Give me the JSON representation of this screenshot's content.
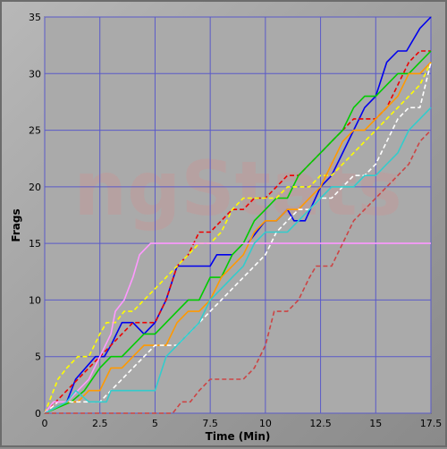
{
  "chart_data": {
    "type": "line",
    "title": "",
    "xlabel": "Time (Min)",
    "ylabel": "Frags",
    "xlim": [
      0,
      17.5
    ],
    "ylim": [
      0,
      35
    ],
    "xticks": [
      "0",
      "2.5",
      "5",
      "7.5",
      "10",
      "12.5",
      "15",
      "17.5"
    ],
    "yticks": [
      "0",
      "5",
      "10",
      "15",
      "20",
      "25",
      "30",
      "35"
    ],
    "grid": true,
    "legend": "none",
    "watermark": "ngStats",
    "series": [
      {
        "color": "#0000ee",
        "dash": "solid",
        "points": [
          [
            0,
            0
          ],
          [
            1,
            1
          ],
          [
            1.4,
            3
          ],
          [
            2.3,
            5
          ],
          [
            2.7,
            5
          ],
          [
            3,
            6
          ],
          [
            3.5,
            8
          ],
          [
            4,
            8
          ],
          [
            4.5,
            7
          ],
          [
            5,
            8
          ],
          [
            5.5,
            10
          ],
          [
            6,
            13
          ],
          [
            7.5,
            13
          ],
          [
            7.8,
            14
          ],
          [
            8.5,
            14
          ]
        ]
      },
      {
        "color": "#0000ee",
        "dash": "solid",
        "points": [
          [
            9.2,
            15
          ],
          [
            10,
            17
          ],
          [
            10.5,
            17
          ],
          [
            11,
            18
          ],
          [
            11.3,
            17
          ],
          [
            11.8,
            17
          ],
          [
            12.5,
            20
          ],
          [
            13,
            21
          ],
          [
            13.5,
            23
          ],
          [
            14,
            25
          ],
          [
            14.5,
            27
          ],
          [
            15,
            28
          ],
          [
            15.5,
            31
          ],
          [
            16,
            32
          ],
          [
            16.4,
            32
          ],
          [
            17,
            34
          ],
          [
            17.5,
            35
          ]
        ]
      },
      {
        "color": "#ee0000",
        "dash": "dashed",
        "points": [
          [
            0,
            0
          ],
          [
            1,
            2
          ],
          [
            1.5,
            3
          ],
          [
            2,
            4
          ],
          [
            2.5,
            5
          ],
          [
            3,
            6
          ],
          [
            3.5,
            7
          ],
          [
            4,
            8
          ],
          [
            4.5,
            8
          ],
          [
            5,
            8
          ],
          [
            5.5,
            10
          ],
          [
            6,
            13
          ],
          [
            6.5,
            14
          ],
          [
            7,
            16
          ],
          [
            7.5,
            16
          ],
          [
            8,
            17
          ],
          [
            8.5,
            18
          ],
          [
            9,
            18
          ],
          [
            9.5,
            19
          ],
          [
            10,
            19
          ],
          [
            10.5,
            20
          ],
          [
            11,
            21
          ],
          [
            11.5,
            21
          ],
          [
            12,
            22
          ],
          [
            12.5,
            23
          ],
          [
            13,
            24
          ],
          [
            13.5,
            25
          ],
          [
            14,
            26
          ],
          [
            15,
            26
          ],
          [
            15.5,
            27
          ],
          [
            16,
            29
          ],
          [
            16.5,
            31
          ],
          [
            17,
            32
          ],
          [
            17.5,
            32
          ]
        ]
      },
      {
        "color": "#00cc00",
        "dash": "solid",
        "points": [
          [
            0,
            0
          ],
          [
            1.2,
            1
          ],
          [
            1.8,
            2
          ],
          [
            2.5,
            4
          ],
          [
            3,
            5
          ],
          [
            3.5,
            5
          ],
          [
            4,
            6
          ],
          [
            4.5,
            7
          ],
          [
            5,
            7
          ],
          [
            5.5,
            8
          ],
          [
            6,
            9
          ],
          [
            6.5,
            10
          ],
          [
            7,
            10
          ],
          [
            7.5,
            12
          ],
          [
            8,
            12
          ],
          [
            8.5,
            14
          ],
          [
            9,
            15
          ],
          [
            9.5,
            17
          ],
          [
            10,
            18
          ],
          [
            10.5,
            19
          ],
          [
            11,
            19
          ],
          [
            11.5,
            21
          ],
          [
            12,
            22
          ],
          [
            12.5,
            23
          ],
          [
            13,
            24
          ],
          [
            13.5,
            25
          ],
          [
            14,
            27
          ],
          [
            14.5,
            28
          ],
          [
            15,
            28
          ],
          [
            15.5,
            29
          ],
          [
            16,
            30
          ],
          [
            16.5,
            30
          ],
          [
            17,
            31
          ],
          [
            17.5,
            32
          ]
        ]
      },
      {
        "color": "#ffff00",
        "dash": "dashed",
        "points": [
          [
            0,
            0
          ],
          [
            0.6,
            3
          ],
          [
            1,
            4
          ],
          [
            1.5,
            5
          ],
          [
            2,
            5
          ],
          [
            2.5,
            7
          ],
          [
            2.8,
            8
          ],
          [
            3.2,
            8
          ],
          [
            3.6,
            9
          ],
          [
            4,
            9
          ],
          [
            4.5,
            10
          ],
          [
            5,
            11
          ],
          [
            5.5,
            12
          ],
          [
            6,
            13
          ],
          [
            6.5,
            14
          ],
          [
            7,
            15
          ],
          [
            7.5,
            15
          ],
          [
            8,
            16
          ],
          [
            8.5,
            18
          ],
          [
            9,
            19
          ],
          [
            10,
            19
          ],
          [
            10.5,
            19
          ],
          [
            11,
            20
          ],
          [
            11.5,
            20
          ],
          [
            12,
            20
          ],
          [
            12.5,
            21
          ],
          [
            13,
            21
          ],
          [
            13.5,
            22
          ],
          [
            14,
            23
          ],
          [
            14.5,
            24
          ],
          [
            15,
            25
          ],
          [
            15.5,
            26
          ],
          [
            16,
            27
          ],
          [
            16.5,
            28
          ],
          [
            17,
            29
          ],
          [
            17.5,
            31
          ]
        ]
      },
      {
        "color": "#ff9900",
        "dash": "solid",
        "points": [
          [
            0,
            0
          ],
          [
            1,
            1
          ],
          [
            1.5,
            1
          ],
          [
            2,
            2
          ],
          [
            2.5,
            2
          ],
          [
            3,
            4
          ],
          [
            3.5,
            4
          ],
          [
            4,
            5
          ],
          [
            4.5,
            6
          ],
          [
            5,
            6
          ],
          [
            5.5,
            6
          ],
          [
            6,
            8
          ],
          [
            6.5,
            9
          ],
          [
            7,
            9
          ],
          [
            7.5,
            10
          ],
          [
            8,
            12
          ],
          [
            8.5,
            13
          ],
          [
            9,
            14
          ],
          [
            9.5,
            16
          ],
          [
            10,
            17
          ],
          [
            10.5,
            17
          ],
          [
            11,
            18
          ],
          [
            11.5,
            18
          ],
          [
            12,
            19
          ],
          [
            12.5,
            20
          ],
          [
            13,
            22
          ],
          [
            13.5,
            24
          ],
          [
            14,
            25
          ],
          [
            14.5,
            25
          ],
          [
            15,
            26
          ],
          [
            15.5,
            27
          ],
          [
            16,
            28
          ],
          [
            16.5,
            30
          ],
          [
            17,
            30
          ],
          [
            17.5,
            31
          ]
        ]
      },
      {
        "color": "#ffffff",
        "dash": "dashed",
        "points": [
          [
            0,
            0
          ],
          [
            0.6,
            1
          ],
          [
            1,
            1
          ],
          [
            1.5,
            1
          ],
          [
            2,
            1
          ],
          [
            2.5,
            1
          ],
          [
            3,
            2
          ],
          [
            3.5,
            3
          ],
          [
            4,
            4
          ],
          [
            4.5,
            5
          ],
          [
            5,
            6
          ],
          [
            5.5,
            6
          ],
          [
            6,
            6
          ],
          [
            6.5,
            7
          ],
          [
            7,
            8
          ],
          [
            7.5,
            9
          ],
          [
            8,
            10
          ],
          [
            8.5,
            11
          ],
          [
            9,
            12
          ],
          [
            9.5,
            13
          ],
          [
            10,
            14
          ],
          [
            10.5,
            16
          ],
          [
            11,
            17
          ],
          [
            11.5,
            18
          ],
          [
            12,
            18
          ],
          [
            12.5,
            19
          ],
          [
            13,
            19
          ],
          [
            13.5,
            20
          ],
          [
            14,
            21
          ],
          [
            14.5,
            21
          ],
          [
            15,
            22
          ],
          [
            15.5,
            24
          ],
          [
            16,
            26
          ],
          [
            16.5,
            27
          ],
          [
            17,
            27
          ],
          [
            17.5,
            31
          ]
        ]
      },
      {
        "color": "#ff99ff",
        "dash": "solid",
        "points": [
          [
            0,
            0
          ],
          [
            0.4,
            1
          ],
          [
            1,
            1
          ],
          [
            1.5,
            2
          ],
          [
            2,
            3
          ],
          [
            2.5,
            5
          ],
          [
            3,
            7
          ],
          [
            3.2,
            9
          ],
          [
            3.6,
            10
          ],
          [
            4,
            12
          ],
          [
            4.3,
            14
          ],
          [
            4.8,
            15
          ],
          [
            17.5,
            15
          ]
        ]
      },
      {
        "color": "#33cccc",
        "dash": "solid",
        "points": [
          [
            0,
            0
          ],
          [
            1,
            1
          ],
          [
            1.4,
            2
          ],
          [
            2,
            1
          ],
          [
            2.5,
            1
          ],
          [
            2.8,
            1
          ],
          [
            3,
            2
          ],
          [
            4,
            2
          ],
          [
            4.5,
            2
          ],
          [
            5,
            2
          ],
          [
            5.5,
            5
          ],
          [
            6,
            6
          ],
          [
            6.5,
            7
          ],
          [
            7,
            8
          ],
          [
            7.5,
            10
          ],
          [
            8,
            11
          ],
          [
            8.5,
            12
          ],
          [
            9,
            13
          ],
          [
            9.5,
            15
          ],
          [
            10,
            16
          ],
          [
            10.5,
            16
          ],
          [
            11,
            16
          ],
          [
            11.5,
            17
          ],
          [
            12,
            18
          ],
          [
            12.5,
            19
          ],
          [
            13,
            20
          ],
          [
            13.5,
            20
          ],
          [
            14,
            20
          ],
          [
            14.5,
            21
          ],
          [
            15,
            21
          ],
          [
            15.5,
            22
          ],
          [
            16,
            23
          ],
          [
            16.5,
            25
          ],
          [
            17,
            26
          ],
          [
            17.5,
            27
          ]
        ]
      },
      {
        "color": "#cc4444",
        "dash": "dashed",
        "points": [
          [
            0,
            0
          ],
          [
            5.8,
            0
          ],
          [
            6.2,
            1
          ],
          [
            6.6,
            1
          ],
          [
            7,
            2
          ],
          [
            7.5,
            3
          ],
          [
            8,
            3
          ],
          [
            8.5,
            3
          ],
          [
            9,
            3
          ],
          [
            9.5,
            4
          ],
          [
            10,
            6
          ],
          [
            10.4,
            9
          ],
          [
            11,
            9
          ],
          [
            11.5,
            10
          ],
          [
            12,
            12
          ],
          [
            12.3,
            13
          ],
          [
            13,
            13
          ],
          [
            13.5,
            15
          ],
          [
            14,
            17
          ],
          [
            14.5,
            18
          ],
          [
            15,
            19
          ],
          [
            15.5,
            20
          ],
          [
            16,
            21
          ],
          [
            16.5,
            22
          ],
          [
            17,
            24
          ],
          [
            17.5,
            25
          ]
        ]
      }
    ]
  }
}
